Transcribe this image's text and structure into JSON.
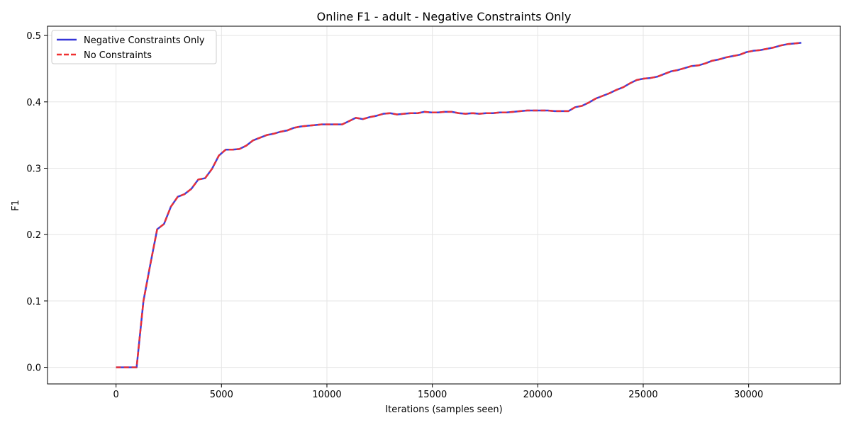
{
  "chart_data": {
    "type": "line",
    "title": "Online F1 - adult - Negative Constraints Only",
    "xlabel": "Iterations (samples seen)",
    "ylabel": "F1",
    "xlim": [
      -3250,
      34350
    ],
    "ylim": [
      -0.025,
      0.514
    ],
    "xticks": [
      0,
      5000,
      10000,
      15000,
      20000,
      25000,
      30000
    ],
    "yticks": [
      0.0,
      0.1,
      0.2,
      0.3,
      0.4,
      0.5
    ],
    "xtick_labels": [
      "0",
      "5000",
      "10000",
      "15000",
      "20000",
      "25000",
      "30000"
    ],
    "ytick_labels": [
      "0.0",
      "0.1",
      "0.2",
      "0.3",
      "0.4",
      "0.5"
    ],
    "grid": true,
    "legend_position": "top-left",
    "x": [
      0,
      325,
      650,
      975,
      1300,
      1625,
      1950,
      2275,
      2600,
      2925,
      3250,
      3575,
      3900,
      4225,
      4550,
      4875,
      5200,
      5525,
      5850,
      6175,
      6500,
      6825,
      7150,
      7475,
      7800,
      8125,
      8450,
      8775,
      9100,
      9425,
      9750,
      10075,
      10400,
      10725,
      11050,
      11375,
      11700,
      12025,
      12350,
      12675,
      13000,
      13325,
      13650,
      13975,
      14300,
      14625,
      14950,
      15275,
      15600,
      15925,
      16250,
      16575,
      16900,
      17225,
      17550,
      17875,
      18200,
      18525,
      18850,
      19175,
      19500,
      19825,
      20150,
      20475,
      20800,
      21125,
      21450,
      21775,
      22100,
      22425,
      22750,
      23075,
      23400,
      23725,
      24050,
      24375,
      24700,
      25025,
      25350,
      25675,
      26000,
      26325,
      26650,
      26975,
      27300,
      27625,
      27950,
      28275,
      28600,
      28925,
      29250,
      29575,
      29900,
      30225,
      30550,
      30875,
      31200,
      31525,
      31850,
      32175,
      32500
    ],
    "series": [
      {
        "name": "Negative Constraints Only",
        "color": "#3535d8",
        "style": "solid",
        "values": [
          0.0,
          0.0,
          0.0,
          0.0,
          0.1,
          0.155,
          0.208,
          0.216,
          0.242,
          0.257,
          0.261,
          0.269,
          0.283,
          0.285,
          0.299,
          0.319,
          0.328,
          0.328,
          0.329,
          0.334,
          0.342,
          0.346,
          0.35,
          0.352,
          0.355,
          0.357,
          0.361,
          0.363,
          0.364,
          0.365,
          0.366,
          0.366,
          0.366,
          0.366,
          0.371,
          0.376,
          0.374,
          0.377,
          0.379,
          0.382,
          0.383,
          0.381,
          0.382,
          0.383,
          0.383,
          0.385,
          0.384,
          0.384,
          0.385,
          0.385,
          0.383,
          0.382,
          0.383,
          0.382,
          0.383,
          0.383,
          0.384,
          0.384,
          0.385,
          0.386,
          0.387,
          0.387,
          0.387,
          0.387,
          0.386,
          0.386,
          0.386,
          0.392,
          0.394,
          0.399,
          0.405,
          0.409,
          0.413,
          0.418,
          0.422,
          0.428,
          0.433,
          0.435,
          0.436,
          0.438,
          0.442,
          0.446,
          0.448,
          0.451,
          0.454,
          0.455,
          0.458,
          0.462,
          0.464,
          0.467,
          0.469,
          0.471,
          0.475,
          0.477,
          0.478,
          0.48,
          0.482,
          0.485,
          0.487,
          0.488,
          0.489
        ]
      },
      {
        "name": "No Constraints",
        "color": "#f03030",
        "style": "dashed",
        "values": [
          0.0,
          0.0,
          0.0,
          0.0,
          0.1,
          0.155,
          0.208,
          0.216,
          0.242,
          0.257,
          0.261,
          0.269,
          0.283,
          0.285,
          0.299,
          0.319,
          0.328,
          0.328,
          0.329,
          0.334,
          0.342,
          0.346,
          0.35,
          0.352,
          0.355,
          0.357,
          0.361,
          0.363,
          0.364,
          0.365,
          0.366,
          0.366,
          0.366,
          0.366,
          0.371,
          0.376,
          0.374,
          0.377,
          0.379,
          0.382,
          0.383,
          0.381,
          0.382,
          0.383,
          0.383,
          0.385,
          0.384,
          0.384,
          0.385,
          0.385,
          0.383,
          0.382,
          0.383,
          0.382,
          0.383,
          0.383,
          0.384,
          0.384,
          0.385,
          0.386,
          0.387,
          0.387,
          0.387,
          0.387,
          0.386,
          0.386,
          0.386,
          0.392,
          0.394,
          0.399,
          0.405,
          0.409,
          0.413,
          0.418,
          0.422,
          0.428,
          0.433,
          0.435,
          0.436,
          0.438,
          0.442,
          0.446,
          0.448,
          0.451,
          0.454,
          0.455,
          0.458,
          0.462,
          0.464,
          0.467,
          0.469,
          0.471,
          0.475,
          0.477,
          0.478,
          0.48,
          0.482,
          0.485,
          0.487,
          0.488,
          0.489
        ]
      }
    ]
  }
}
